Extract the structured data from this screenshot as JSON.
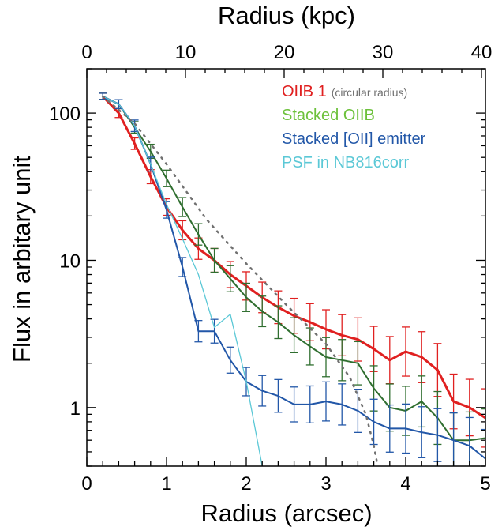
{
  "chart_data": {
    "type": "line",
    "xlabel": "Radius (arcsec)",
    "x2label": "Radius (kpc)",
    "ylabel": "Flux in arbitary unit",
    "xlim": [
      0,
      5
    ],
    "ylim": [
      0.4,
      200
    ],
    "yscale": "log",
    "x_ticks": [
      0,
      1,
      2,
      3,
      4,
      5
    ],
    "y_ticks": [
      1,
      10,
      100
    ],
    "x2_ticks": [
      0,
      10,
      20,
      30,
      40
    ],
    "x2_kpc_per_arcsec": 8.08,
    "legend_position": "top-right",
    "series": [
      {
        "name": "OIIB 1",
        "note": "(circular radius)",
        "color": "#e02020",
        "width": 3,
        "error_bars": true,
        "points": [
          [
            0.2,
            130
          ],
          [
            0.4,
            100
          ],
          [
            0.6,
            62
          ],
          [
            0.8,
            37
          ],
          [
            1.0,
            23
          ],
          [
            1.2,
            16
          ],
          [
            1.4,
            12
          ],
          [
            1.6,
            10
          ],
          [
            1.8,
            8
          ],
          [
            2.0,
            6.7
          ],
          [
            2.2,
            5.6
          ],
          [
            2.4,
            4.8
          ],
          [
            2.6,
            4.2
          ],
          [
            2.8,
            3.8
          ],
          [
            3.0,
            3.4
          ],
          [
            3.2,
            3.1
          ],
          [
            3.4,
            2.9
          ],
          [
            3.6,
            2.5
          ],
          [
            3.8,
            2.1
          ],
          [
            4.0,
            2.4
          ],
          [
            4.2,
            2.2
          ],
          [
            4.4,
            1.8
          ],
          [
            4.6,
            1.1
          ],
          [
            4.8,
            1.0
          ],
          [
            5.0,
            0.85
          ]
        ]
      },
      {
        "name": "Stacked OIIB",
        "color": "#2f6e2f",
        "label_color": "#6cc13b",
        "width": 2,
        "error_bars": true,
        "points": [
          [
            0.2,
            130
          ],
          [
            0.4,
            115
          ],
          [
            0.6,
            80
          ],
          [
            0.8,
            55
          ],
          [
            1.0,
            36
          ],
          [
            1.2,
            23
          ],
          [
            1.4,
            15
          ],
          [
            1.6,
            10
          ],
          [
            1.8,
            7.5
          ],
          [
            2.0,
            5.6
          ],
          [
            2.2,
            4.5
          ],
          [
            2.4,
            3.8
          ],
          [
            2.6,
            3.1
          ],
          [
            2.8,
            2.6
          ],
          [
            3.0,
            2.2
          ],
          [
            3.2,
            2.1
          ],
          [
            3.4,
            2.0
          ],
          [
            3.6,
            1.35
          ],
          [
            3.8,
            1.0
          ],
          [
            4.0,
            0.95
          ],
          [
            4.2,
            1.1
          ],
          [
            4.4,
            0.85
          ],
          [
            4.6,
            0.6
          ],
          [
            4.8,
            0.6
          ],
          [
            5.0,
            0.62
          ]
        ]
      },
      {
        "name": "Stacked [OII] emitter",
        "color": "#2257a8",
        "width": 2,
        "error_bars": true,
        "points": [
          [
            0.2,
            130
          ],
          [
            0.4,
            115
          ],
          [
            0.6,
            82
          ],
          [
            0.8,
            45
          ],
          [
            1.0,
            22
          ],
          [
            1.2,
            9
          ],
          [
            1.4,
            3.3
          ],
          [
            1.6,
            3.3
          ],
          [
            1.8,
            2.1
          ],
          [
            2.0,
            1.5
          ],
          [
            2.2,
            1.3
          ],
          [
            2.4,
            1.2
          ],
          [
            2.6,
            1.05
          ],
          [
            2.8,
            1.05
          ],
          [
            3.0,
            1.1
          ],
          [
            3.2,
            1.05
          ],
          [
            3.4,
            0.95
          ],
          [
            3.6,
            0.8
          ],
          [
            3.8,
            0.72
          ],
          [
            4.0,
            0.72
          ],
          [
            4.2,
            0.68
          ],
          [
            4.4,
            0.65
          ],
          [
            4.6,
            0.6
          ],
          [
            4.8,
            0.55
          ],
          [
            5.0,
            0.45
          ]
        ]
      },
      {
        "name": "PSF in NB816corr",
        "color": "#5bc8d6",
        "width": 1.3,
        "error_bars": false,
        "points": [
          [
            0.2,
            130
          ],
          [
            0.4,
            115
          ],
          [
            0.6,
            82
          ],
          [
            0.8,
            45
          ],
          [
            1.0,
            24
          ],
          [
            1.2,
            14
          ],
          [
            1.4,
            8
          ],
          [
            1.6,
            3.5
          ],
          [
            1.8,
            4.3
          ],
          [
            2.0,
            1.5
          ],
          [
            2.2,
            0.4
          ]
        ]
      },
      {
        "name": "",
        "color": "#707070",
        "width": 2.5,
        "dotted": true,
        "in_legend": false,
        "points": [
          [
            0.2,
            130
          ],
          [
            0.6,
            85
          ],
          [
            1.0,
            45
          ],
          [
            1.5,
            19
          ],
          [
            2.0,
            9.5
          ],
          [
            2.5,
            5
          ],
          [
            3.0,
            2.7
          ],
          [
            3.3,
            1.6
          ],
          [
            3.5,
            0.9
          ],
          [
            3.6,
            0.55
          ],
          [
            3.65,
            0.4
          ]
        ]
      }
    ]
  }
}
